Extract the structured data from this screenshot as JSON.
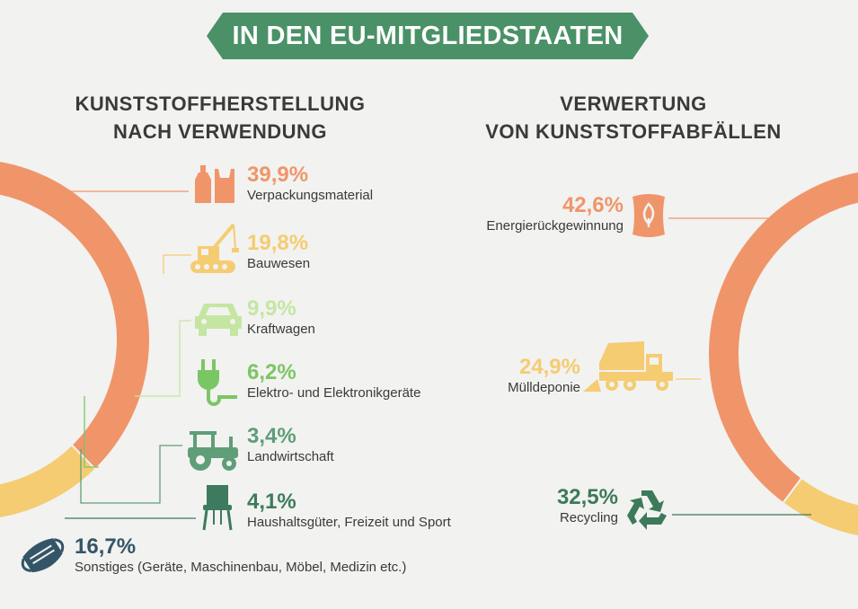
{
  "banner": {
    "title": "IN DEN EU-MITGLIEDSTAATEN"
  },
  "left": {
    "heading_line1": "KUNSTSTOFFHERSTELLUNG",
    "heading_line2": "NACH VERWENDUNG"
  },
  "right": {
    "heading_line1": "VERWERTUNG",
    "heading_line2": "VON KUNSTSTOFFABFÄLLEN"
  },
  "icons": {
    "packaging": "bottle-and-bag-icon",
    "construction": "crane-icon",
    "automotive": "car-icon",
    "electronics": "plug-icon",
    "agriculture": "tractor-icon",
    "household": "chair-icon",
    "others": "face-mask-icon",
    "energy": "fuel-sack-icon",
    "landfill": "dump-truck-icon",
    "recycling": "recycling-icon"
  },
  "colors": {
    "banner": "#4a9167",
    "orange": "#f0956a",
    "yellow": "#f5cc71",
    "light_green": "#c5e6a3",
    "green": "#7bc664",
    "sea_green": "#5f9e78",
    "dark_green": "#3e7a5d",
    "navy": "#345567",
    "dark_green_right": "#3c7a5a"
  },
  "chart_data": [
    {
      "type": "pie",
      "title": "KUNSTSTOFFHERSTELLUNG NACH VERWENDUNG",
      "unit": "%",
      "series": [
        {
          "name": "Verpackungsmaterial",
          "value": 39.9,
          "label": "39,9%",
          "color": "#f0956a"
        },
        {
          "name": "Bauwesen",
          "value": 19.8,
          "label": "19,8%",
          "color": "#f5cc71"
        },
        {
          "name": "Kraftwagen",
          "value": 9.9,
          "label": "9,9%",
          "color": "#c5e6a3"
        },
        {
          "name": "Elektro- und Elektronikgeräte",
          "value": 6.2,
          "label": "6,2%",
          "color": "#7bc664"
        },
        {
          "name": "Landwirtschaft",
          "value": 3.4,
          "label": "3,4%",
          "color": "#5f9e78"
        },
        {
          "name": "Haushaltsgüter, Freizeit und Sport",
          "value": 4.1,
          "label": "4,1%",
          "color": "#3e7a5d"
        },
        {
          "name": "Sonstiges (Geräte, Maschinenbau, Möbel, Medizin etc.)",
          "value": 16.7,
          "label": "16,7%",
          "color": "#345567"
        }
      ]
    },
    {
      "type": "pie",
      "title": "VERWERTUNG VON KUNSTSTOFFABFÄLLEN",
      "unit": "%",
      "series": [
        {
          "name": "Energierückgewinnung",
          "value": 42.6,
          "label": "42,6%",
          "color": "#f0956a"
        },
        {
          "name": "Mülldeponie",
          "value": 24.9,
          "label": "24,9%",
          "color": "#f5cc71"
        },
        {
          "name": "Recycling",
          "value": 32.5,
          "label": "32,5%",
          "color": "#3c7a5a"
        }
      ]
    }
  ]
}
